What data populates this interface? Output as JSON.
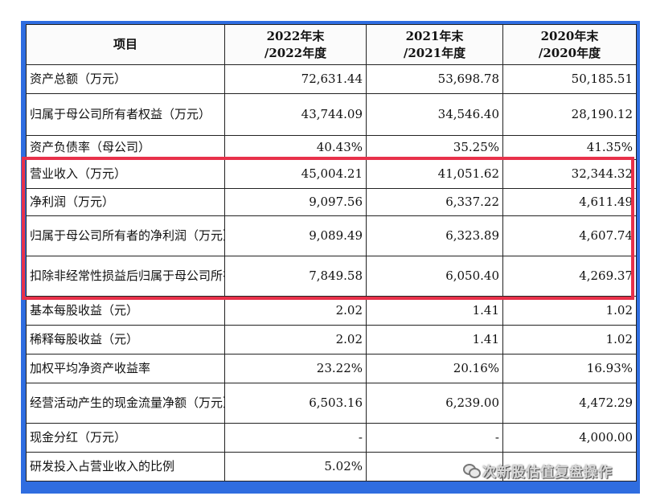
{
  "table": {
    "headers": [
      "项目",
      "2022年末\n/2022年度",
      "2021年末\n/2021年度",
      "2020年末\n/2020年度"
    ],
    "rows": [
      {
        "label": "资产总额（万元）",
        "v": [
          "72,631.44",
          "53,698.78",
          "50,185.51"
        ]
      },
      {
        "label": "归属于母公司所有者权益（万元）",
        "v": [
          "43,744.09",
          "34,546.40",
          "28,190.12"
        ]
      },
      {
        "label": "资产负债率（母公司）",
        "v": [
          "40.43%",
          "35.25%",
          "41.35%"
        ]
      },
      {
        "label": "营业收入（万元）",
        "v": [
          "45,004.21",
          "41,051.62",
          "32,344.32"
        ]
      },
      {
        "label": "净利润（万元）",
        "v": [
          "9,097.56",
          "6,337.22",
          "4,611.49"
        ]
      },
      {
        "label": "归属于母公司所有者的净利润（万元）",
        "v": [
          "9,089.49",
          "6,323.89",
          "4,607.74"
        ]
      },
      {
        "label": "扣除非经常性损益后归属于母公司所有者的净利润（万元）",
        "v": [
          "7,849.58",
          "6,050.40",
          "4,269.37"
        ]
      },
      {
        "label": "基本每股收益（元）",
        "v": [
          "2.02",
          "1.41",
          "1.02"
        ]
      },
      {
        "label": "稀释每股收益（元）",
        "v": [
          "2.02",
          "1.41",
          "1.02"
        ]
      },
      {
        "label": "加权平均净资产收益率",
        "v": [
          "23.22%",
          "20.16%",
          "16.93%"
        ]
      },
      {
        "label": "经营活动产生的现金流量净额（万元）",
        "v": [
          "6,503.16",
          "6,239.00",
          "4,472.29"
        ]
      },
      {
        "label": "现金分红（万元）",
        "v": [
          "-",
          "-",
          "4,000.00"
        ]
      },
      {
        "label": "研发投入占营业收入的比例",
        "v": [
          "5.02%",
          "",
          ""
        ]
      }
    ]
  },
  "watermark": {
    "text": "次新股估值复盘操作",
    "icon": "wechat-icon"
  },
  "colors": {
    "frame": "#2f6de0",
    "highlight": "#e8314a"
  }
}
